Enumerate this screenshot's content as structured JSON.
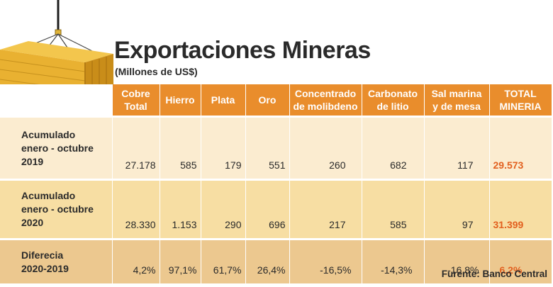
{
  "header": {
    "title": "Exportaciones Mineras",
    "subtitle": "(Millones de US$)"
  },
  "table": {
    "columns": [
      [
        "Cobre",
        "Total"
      ],
      [
        "Hierro"
      ],
      [
        "Plata"
      ],
      [
        "Oro"
      ],
      [
        "Concentrado",
        "de molibdeno"
      ],
      [
        "Carbonato",
        "de litio"
      ],
      [
        "Sal marina",
        "y de mesa"
      ],
      [
        "TOTAL",
        "MINERIA"
      ]
    ],
    "rows": [
      {
        "label": [
          "Acumulado",
          "enero - octubre",
          "2019"
        ],
        "values": [
          "27.178",
          "585",
          "179",
          "551",
          "260",
          "682",
          "117",
          "29.573"
        ]
      },
      {
        "label": [
          "Acumulado",
          "enero - octubre",
          "2020"
        ],
        "values": [
          "28.330",
          "1.153",
          "290",
          "696",
          "217",
          "585",
          "97",
          "31.399"
        ]
      },
      {
        "label": [
          "Diferecia",
          "2020-2019"
        ],
        "values": [
          "4,2%",
          "97,1%",
          "61,7%",
          "26,4%",
          "-16,5%",
          "-14,3%",
          "-16,8%",
          "6,2%"
        ]
      }
    ]
  },
  "footer": {
    "source": "Furente: Banco Central"
  },
  "colors": {
    "header_orange": "#e98d2c",
    "row1": "#fbecd0",
    "row2": "#f7dea3",
    "row3": "#ecc88f",
    "total_text": "#e2601f"
  },
  "illustration": "shipping-container-hanging-from-crane-cable"
}
